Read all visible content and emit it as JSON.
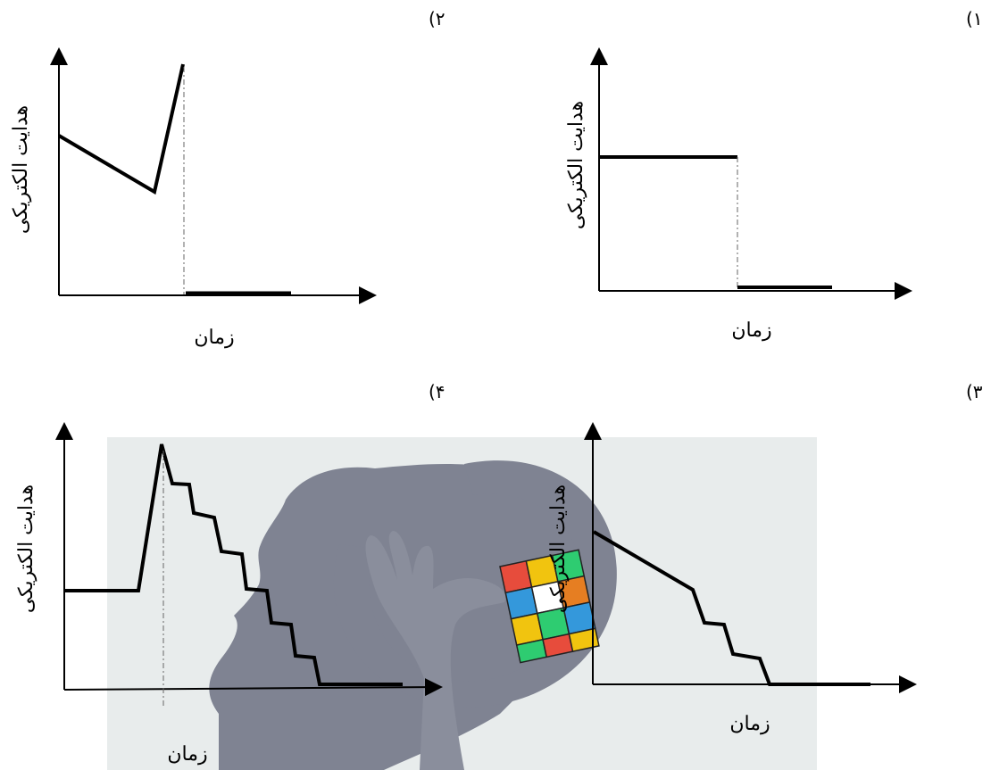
{
  "panels": [
    {
      "number": "(۱",
      "ylabel": "هدایت الکتریکی",
      "xlabel": "زمان"
    },
    {
      "number": "(۲",
      "ylabel": "هدایت الکتریکی",
      "xlabel": "زمان"
    },
    {
      "number": "(۳",
      "ylabel": "هدایت الکتریکی",
      "xlabel": "زمان"
    },
    {
      "number": "(۴",
      "ylabel": "هدایت الکتریکی",
      "xlabel": "زمان"
    }
  ],
  "watermark": {
    "description": "head silhouette with hand holding cube",
    "colors": {
      "background": "#e8ecec",
      "silhouette": "#7f8392",
      "cube": [
        "#e74c3c",
        "#f1c40f",
        "#2ecc71",
        "#3498db",
        "#ffffff",
        "#e67e22"
      ]
    }
  },
  "colors": {
    "line": "#000000",
    "dashed": "#666666"
  }
}
